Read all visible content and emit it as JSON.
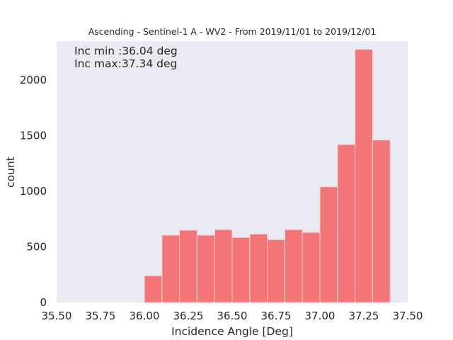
{
  "chart_data": {
    "type": "bar",
    "title": "Ascending - Sentinel-1 A - WV2 - From 2019/11/01 to 2019/12/01",
    "xlabel": "Incidence Angle [Deg]",
    "ylabel": "count",
    "xlim": [
      35.5,
      37.5
    ],
    "ylim": [
      0,
      2350
    ],
    "xticks": [
      "35.50",
      "35.75",
      "36.00",
      "36.25",
      "36.50",
      "36.75",
      "37.00",
      "37.25",
      "37.50"
    ],
    "yticks": [
      "0",
      "500",
      "1000",
      "1500",
      "2000"
    ],
    "bin_edges": [
      36.0,
      36.1,
      36.2,
      36.3,
      36.4,
      36.5,
      36.6,
      36.7,
      36.8,
      36.9,
      37.0,
      37.1,
      37.2,
      37.3,
      37.4
    ],
    "values": [
      240,
      605,
      650,
      605,
      655,
      585,
      615,
      565,
      655,
      630,
      1040,
      1420,
      2275,
      1460
    ],
    "annotations": [
      "Inc min :36.04 deg",
      "Inc max:37.34 deg"
    ],
    "grid": false,
    "colors": {
      "bar": "#f47578",
      "bar_edge": "#fbd3d4",
      "plot_background": "#eaeaf2",
      "text": "#262626"
    }
  }
}
